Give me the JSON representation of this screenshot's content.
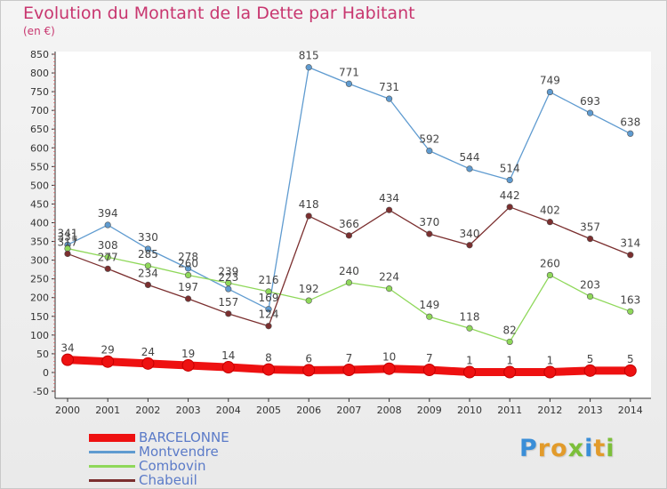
{
  "title": "Evolution du Montant de la Dette par Habitant",
  "subtitle": "(en €)",
  "logo": {
    "letters": [
      "P",
      "r",
      "o",
      "x",
      "i",
      "t",
      "i"
    ],
    "colors": [
      "#3a8ed8",
      "#e29b2b",
      "#e29b2b",
      "#7cbf3a",
      "#3a8ed8",
      "#e29b2b",
      "#7cbf3a"
    ]
  },
  "chart_data": {
    "type": "line",
    "title": "Evolution du Montant de la Dette par Habitant",
    "subtitle": "(en €)",
    "x": [
      "2000",
      "2001",
      "2002",
      "2003",
      "2004",
      "2005",
      "2006",
      "2007",
      "2008",
      "2009",
      "2010",
      "2011",
      "2012",
      "2013",
      "2014"
    ],
    "ylim": [
      -50,
      850
    ],
    "yticks": [
      -50,
      0,
      50,
      100,
      150,
      200,
      250,
      300,
      350,
      400,
      450,
      500,
      550,
      600,
      650,
      700,
      750,
      800,
      850
    ],
    "grid": false,
    "legend_position": "bottom-left",
    "series": [
      {
        "name": "BARCELONNE",
        "color": "#ee1111",
        "values": [
          34,
          29,
          24,
          19,
          14,
          8,
          6,
          7,
          10,
          7,
          1,
          1,
          1,
          5,
          5
        ],
        "labels": [
          "34",
          "29",
          "24",
          "19",
          "14",
          "8",
          "6",
          "7",
          "10",
          "7",
          "1",
          "1",
          "1",
          "5",
          "5"
        ]
      },
      {
        "name": "Montvendre",
        "color": "#5f9bd0",
        "values": [
          341,
          394,
          330,
          278,
          223,
          169,
          815,
          771,
          731,
          592,
          544,
          514,
          749,
          693,
          638
        ],
        "labels": [
          "341",
          "394",
          "330",
          "278",
          "223",
          "169",
          "815",
          "771",
          "731",
          "592",
          "544",
          "514",
          "749",
          "693",
          "638"
        ]
      },
      {
        "name": "Combovin",
        "color": "#8fd85a",
        "values": [
          331,
          308,
          285,
          260,
          239,
          216,
          192,
          240,
          224,
          149,
          118,
          82,
          260,
          203,
          163
        ],
        "labels": [
          "331",
          "308",
          "285",
          "260",
          "239",
          "216",
          "192",
          "240",
          "224",
          "149",
          "118",
          "82",
          "260",
          "203",
          "163"
        ]
      },
      {
        "name": "Chabeuil",
        "color": "#7b2f2f",
        "values": [
          317,
          277,
          234,
          197,
          157,
          124,
          418,
          366,
          434,
          370,
          340,
          442,
          402,
          357,
          314
        ],
        "labels": [
          "317",
          "277",
          "234",
          "197",
          "157",
          "124",
          "418",
          "366",
          "434",
          "370",
          "340",
          "442",
          "402",
          "357",
          "314"
        ]
      }
    ]
  }
}
